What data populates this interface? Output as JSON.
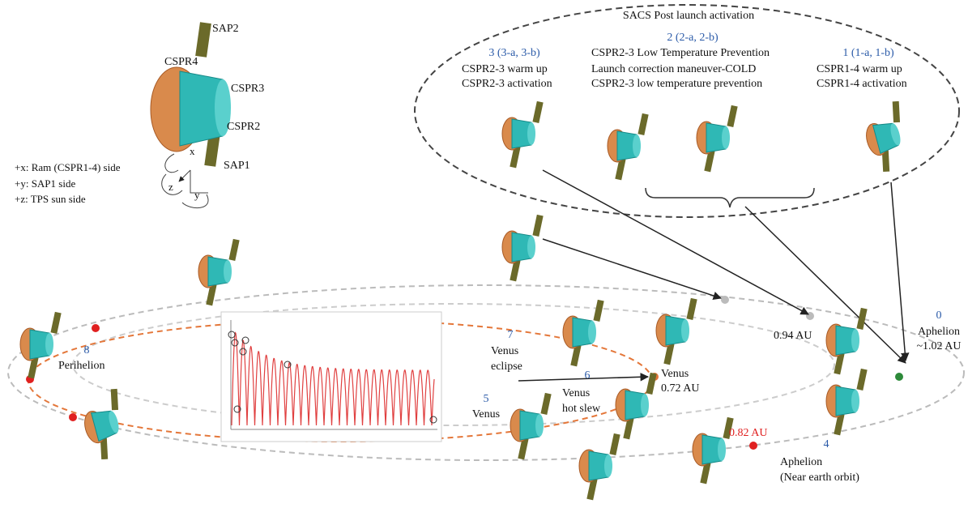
{
  "spacecraft_legend": {
    "labels": [
      "SAP2",
      "CSPR4",
      "CSPR3",
      "CSPR2",
      "SAP1"
    ],
    "axes": [
      "x",
      "z",
      "y"
    ],
    "notes": [
      "+x: Ram (CSPR1-4) side",
      "+y: SAP1 side",
      "+z: TPS sun side"
    ]
  },
  "activation": {
    "title": "SACS Post launch activation",
    "phases": [
      {
        "number": "3 (3-a, 3-b)",
        "lines": [
          "CSPR2-3 warm up",
          "CSPR2-3 activation"
        ]
      },
      {
        "number": "2 (2-a, 2-b)",
        "lines": [
          "CSPR2-3 Low Temperature Prevention",
          "Launch correction maneuver-COLD",
          "CSPR2-3 low temperature prevention"
        ]
      },
      {
        "number": "1 (1-a, 1-b)",
        "lines": [
          "CSPR1-4 warm up",
          "CSPR1-4 activation"
        ]
      }
    ]
  },
  "orbit_points": [
    {
      "number": "0",
      "lines": [
        "Aphelion",
        "~1.02 AU"
      ]
    },
    {
      "number": "4",
      "lines": [
        "Aphelion",
        "(Near earth orbit)"
      ]
    },
    {
      "number": "5",
      "lines": [
        "Venus"
      ]
    },
    {
      "number": "6",
      "lines": [
        "Venus",
        "hot slew"
      ]
    },
    {
      "number": "7",
      "lines": [
        "Venus",
        "eclipse"
      ]
    },
    {
      "number": "8",
      "lines": [
        "Perihelion"
      ]
    }
  ],
  "venus_point": [
    "Venus",
    "0.72 AU"
  ],
  "distances": [
    "0.94 AU",
    "0.82 AU"
  ]
}
